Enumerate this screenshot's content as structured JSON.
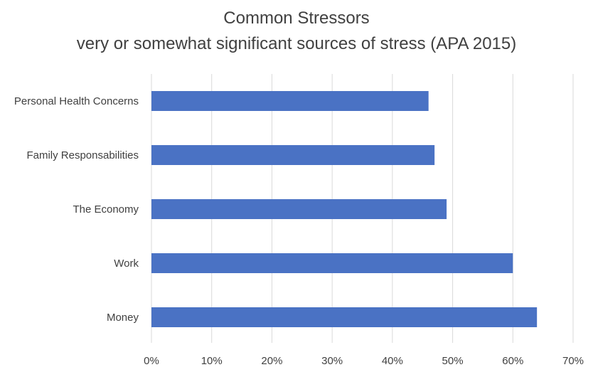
{
  "chart_data": {
    "type": "bar",
    "orientation": "horizontal",
    "title": "Common Stressors",
    "subtitle": "very or somewhat significant sources of stress (APA 2015)",
    "categories": [
      "Personal Health Concerns",
      "Family Responsabilities",
      "The Economy",
      "Work",
      "Money"
    ],
    "values": [
      46,
      47,
      49,
      60,
      64
    ],
    "xlabel": "",
    "ylabel": "",
    "xlim": [
      0,
      70
    ],
    "x_ticks": [
      "0%",
      "10%",
      "20%",
      "30%",
      "40%",
      "50%",
      "60%",
      "70%"
    ],
    "grid": "vertical",
    "legend": "none",
    "bar_color": "#4a72c4",
    "grid_color": "#d9d9d9"
  }
}
